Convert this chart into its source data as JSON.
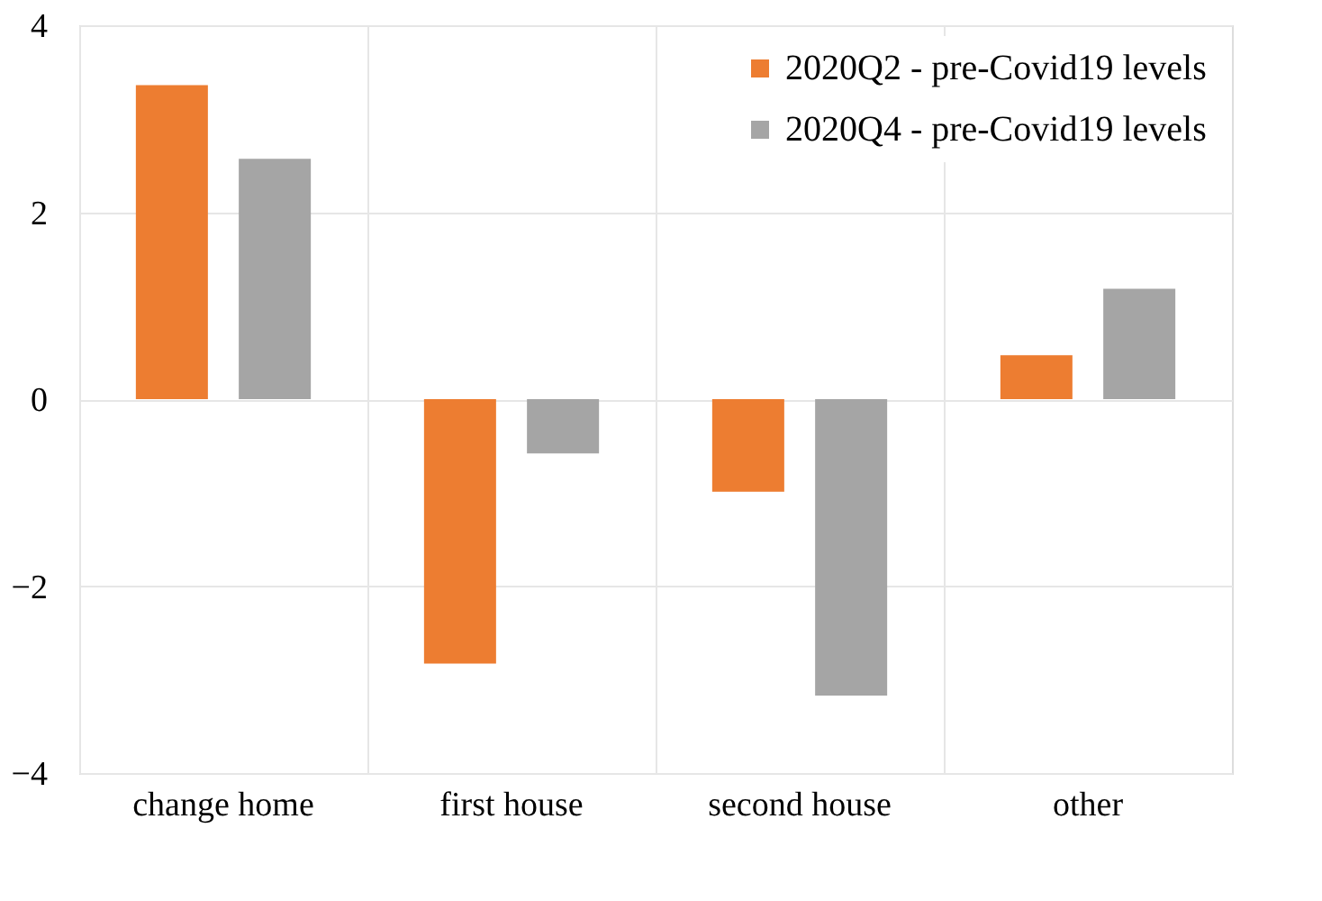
{
  "chart_data": {
    "type": "bar",
    "categories": [
      "change home",
      "first house",
      "second house",
      "other"
    ],
    "series": [
      {
        "name": "2020Q2 - pre-Covid19 levels",
        "color": "#ed7d31",
        "values": [
          3.36,
          -2.83,
          -0.99,
          0.47
        ]
      },
      {
        "name": "2020Q4 - pre-Covid19 levels",
        "color": "#a5a5a5",
        "values": [
          2.57,
          -0.58,
          -3.17,
          1.18
        ]
      }
    ],
    "ylim": [
      -4,
      4
    ],
    "yticks": [
      -4,
      -2,
      0,
      2,
      4
    ],
    "grid": true,
    "legend": "top right"
  }
}
